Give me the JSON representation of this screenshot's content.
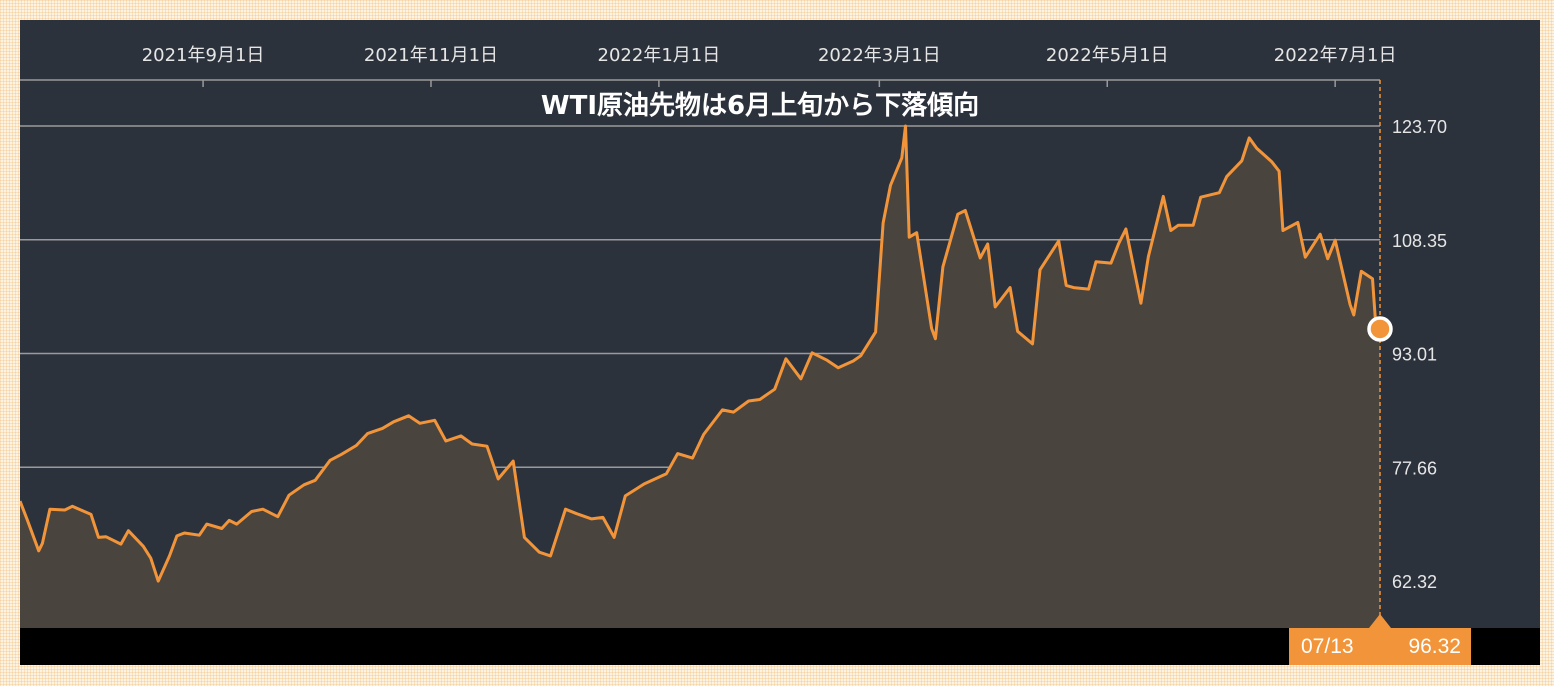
{
  "colors": {
    "line": "#f2953a",
    "area": "#4a443f",
    "panel": "#2c323c",
    "readout_bg": "#f2953a"
  },
  "readout": {
    "date": "07/13",
    "value": "96.32"
  },
  "chart_data": {
    "type": "area",
    "title": "WTI原油先物は6月上旬から下落傾向",
    "xlabel": "",
    "ylabel": "",
    "x_tick_labels": [
      "2021年9月1日",
      "2021年11月1日",
      "2022年1月1日",
      "2022年3月1日",
      "2022年5月1日",
      "2022年7月1日"
    ],
    "x_tick_dates": [
      "2021-09-01",
      "2021-11-01",
      "2022-01-01",
      "2022-03-01",
      "2022-05-01",
      "2022-07-01"
    ],
    "y_ticks": [
      62.32,
      77.66,
      93.01,
      108.35,
      123.7
    ],
    "y_tick_labels": [
      "62.32",
      "77.66",
      "93.01",
      "108.35",
      "123.70"
    ],
    "xlim": [
      "2021-07-14",
      "2022-07-13"
    ],
    "ylim": [
      56.0,
      129.0
    ],
    "grid": true,
    "last_point": {
      "date": "2022-07-13",
      "value": 96.32
    },
    "series": [
      {
        "x": [
          "2021-07-14",
          "2021-07-16",
          "2021-07-19",
          "2021-07-20",
          "2021-07-22",
          "2021-07-26",
          "2021-07-28",
          "2021-08-02",
          "2021-08-04",
          "2021-08-06",
          "2021-08-10",
          "2021-08-12",
          "2021-08-16",
          "2021-08-18",
          "2021-08-20",
          "2021-08-23",
          "2021-08-25",
          "2021-08-27",
          "2021-08-31",
          "2021-09-02",
          "2021-09-06",
          "2021-09-08",
          "2021-09-10",
          "2021-09-14",
          "2021-09-17",
          "2021-09-21",
          "2021-09-24",
          "2021-09-28",
          "2021-10-01",
          "2021-10-05",
          "2021-10-08",
          "2021-10-12",
          "2021-10-15",
          "2021-10-19",
          "2021-10-22",
          "2021-10-26",
          "2021-10-29",
          "2021-11-02",
          "2021-11-05",
          "2021-11-09",
          "2021-11-12",
          "2021-11-16",
          "2021-11-19",
          "2021-11-23",
          "2021-11-26",
          "2021-11-30",
          "2021-12-03",
          "2021-12-07",
          "2021-12-10",
          "2021-12-14",
          "2021-12-17",
          "2021-12-20",
          "2021-12-23",
          "2021-12-28",
          "2022-01-03",
          "2022-01-06",
          "2022-01-10",
          "2022-01-13",
          "2022-01-18",
          "2022-01-21",
          "2022-01-25",
          "2022-01-28",
          "2022-02-01",
          "2022-02-04",
          "2022-02-08",
          "2022-02-11",
          "2022-02-15",
          "2022-02-18",
          "2022-02-22",
          "2022-02-24",
          "2022-02-28",
          "2022-03-02",
          "2022-03-04",
          "2022-03-07",
          "2022-03-08",
          "2022-03-09",
          "2022-03-11",
          "2022-03-15",
          "2022-03-16",
          "2022-03-18",
          "2022-03-22",
          "2022-03-24",
          "2022-03-28",
          "2022-03-30",
          "2022-04-01",
          "2022-04-05",
          "2022-04-07",
          "2022-04-11",
          "2022-04-13",
          "2022-04-18",
          "2022-04-20",
          "2022-04-22",
          "2022-04-26",
          "2022-04-28",
          "2022-05-02",
          "2022-05-04",
          "2022-05-06",
          "2022-05-10",
          "2022-05-12",
          "2022-05-16",
          "2022-05-18",
          "2022-05-20",
          "2022-05-24",
          "2022-05-26",
          "2022-05-31",
          "2022-06-02",
          "2022-06-06",
          "2022-06-08",
          "2022-06-10",
          "2022-06-14",
          "2022-06-16",
          "2022-06-17",
          "2022-06-21",
          "2022-06-23",
          "2022-06-27",
          "2022-06-29",
          "2022-07-01",
          "2022-07-05",
          "2022-07-06",
          "2022-07-08",
          "2022-07-11",
          "2022-07-12",
          "2022-07-13"
        ],
        "values": [
          73.1,
          70.5,
          66.4,
          67.4,
          72.0,
          71.9,
          72.4,
          71.3,
          68.2,
          68.3,
          67.3,
          69.1,
          67.0,
          65.4,
          62.3,
          65.7,
          68.4,
          68.8,
          68.5,
          70.0,
          69.4,
          70.5,
          70.0,
          71.7,
          72.0,
          71.0,
          73.9,
          75.3,
          75.9,
          78.6,
          79.4,
          80.6,
          82.2,
          82.9,
          83.8,
          84.6,
          83.6,
          84.0,
          81.2,
          81.9,
          80.8,
          80.5,
          76.1,
          78.5,
          68.2,
          66.2,
          65.7,
          72.0,
          71.4,
          70.7,
          70.9,
          68.2,
          73.8,
          75.4,
          76.8,
          79.5,
          78.9,
          82.1,
          85.4,
          85.1,
          86.6,
          86.8,
          88.2,
          92.3,
          89.6,
          93.1,
          92.1,
          91.1,
          92.0,
          92.7,
          95.9,
          110.6,
          115.7,
          119.4,
          123.7,
          108.7,
          109.3,
          96.4,
          95.0,
          104.7,
          111.8,
          112.3,
          105.9,
          107.8,
          99.3,
          101.9,
          96.0,
          94.3,
          104.3,
          108.2,
          102.2,
          101.9,
          101.7,
          105.4,
          105.2,
          107.8,
          109.8,
          99.8,
          106.1,
          114.2,
          109.6,
          110.3,
          110.3,
          114.1,
          114.7,
          116.9,
          119.0,
          122.1,
          120.7,
          118.9,
          117.6,
          109.6,
          110.7,
          106.0,
          109.1,
          105.8,
          108.3,
          99.6,
          98.2,
          104.1,
          103.1,
          95.8,
          96.3
        ]
      }
    ]
  }
}
